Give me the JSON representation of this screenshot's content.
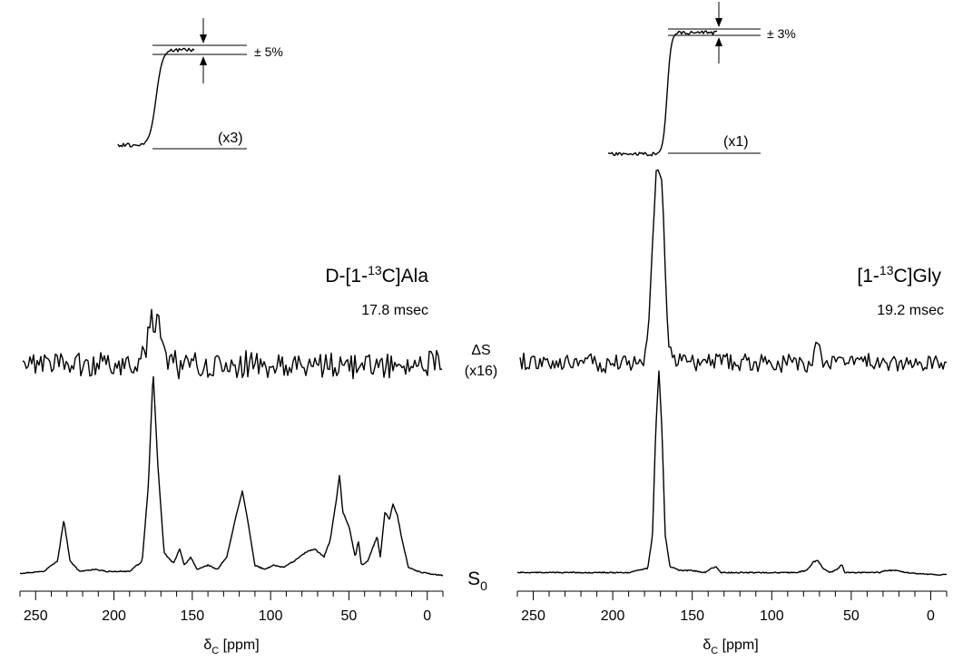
{
  "chart_data": [
    {
      "type": "line",
      "sample_label": {
        "pre": "D-[1-",
        "sup": "13",
        "post": "C]Ala"
      },
      "time_label": "17.8 msec",
      "xlabel": {
        "sym": "δ",
        "sub": "C",
        "unit": " [ppm]"
      },
      "xlim": [
        260,
        -10
      ],
      "x_reversed": true,
      "xticks": [
        "250",
        "200",
        "150",
        "100",
        "50",
        "0"
      ],
      "xtick_values": [
        250,
        200,
        150,
        100,
        50,
        0
      ],
      "integral_scale_label": "(x3)",
      "integral_tolerance_label": "± 5%",
      "series": [
        {
          "role": "S0",
          "points": [
            [
              260,
              0.02
            ],
            [
              245,
              0.03
            ],
            [
              236,
              0.08
            ],
            [
              232,
              0.28
            ],
            [
              228,
              0.08
            ],
            [
              222,
              0.03
            ],
            [
              212,
              0.04
            ],
            [
              205,
              0.03
            ],
            [
              190,
              0.03
            ],
            [
              182,
              0.08
            ],
            [
              178,
              0.45
            ],
            [
              175,
              1.0
            ],
            [
              172,
              0.55
            ],
            [
              168,
              0.12
            ],
            [
              162,
              0.07
            ],
            [
              158,
              0.14
            ],
            [
              155,
              0.06
            ],
            [
              151,
              0.1
            ],
            [
              147,
              0.04
            ],
            [
              140,
              0.06
            ],
            [
              134,
              0.04
            ],
            [
              128,
              0.1
            ],
            [
              122,
              0.3
            ],
            [
              118,
              0.42
            ],
            [
              114,
              0.25
            ],
            [
              110,
              0.06
            ],
            [
              104,
              0.04
            ],
            [
              98,
              0.06
            ],
            [
              92,
              0.05
            ],
            [
              85,
              0.08
            ],
            [
              78,
              0.12
            ],
            [
              72,
              0.14
            ],
            [
              66,
              0.1
            ],
            [
              62,
              0.18
            ],
            [
              58,
              0.38
            ],
            [
              56,
              0.5
            ],
            [
              54,
              0.32
            ],
            [
              50,
              0.25
            ],
            [
              46,
              0.1
            ],
            [
              44,
              0.18
            ],
            [
              42,
              0.06
            ],
            [
              38,
              0.08
            ],
            [
              34,
              0.16
            ],
            [
              32,
              0.2
            ],
            [
              30,
              0.1
            ],
            [
              27,
              0.32
            ],
            [
              24,
              0.28
            ],
            [
              22,
              0.36
            ],
            [
              19,
              0.3
            ],
            [
              16,
              0.18
            ],
            [
              12,
              0.05
            ],
            [
              6,
              0.03
            ],
            [
              0,
              0.02
            ],
            [
              -10,
              0.01
            ]
          ]
        },
        {
          "role": "dS",
          "points": [
            [
              260,
              0.0
            ],
            [
              183,
              0.0
            ],
            [
              180,
              0.15
            ],
            [
              178,
              0.55
            ],
            [
              176,
              0.8
            ],
            [
              174,
              0.7
            ],
            [
              172,
              0.85
            ],
            [
              170,
              0.45
            ],
            [
              168,
              0.15
            ],
            [
              165,
              0.0
            ],
            [
              -10,
              0.0
            ]
          ]
        }
      ]
    },
    {
      "type": "line",
      "sample_label": {
        "pre": "[1-",
        "sup": "13",
        "post": "C]Gly"
      },
      "time_label": "19.2 msec",
      "xlabel": {
        "sym": "δ",
        "sub": "C",
        "unit": " [ppm]"
      },
      "xlim": [
        260,
        -10
      ],
      "x_reversed": true,
      "xticks": [
        "250",
        "200",
        "150",
        "100",
        "50",
        "0"
      ],
      "xtick_values": [
        250,
        200,
        150,
        100,
        50,
        0
      ],
      "integral_scale_label": "(x1)",
      "integral_tolerance_label": "± 3%",
      "series": [
        {
          "role": "S0",
          "points": [
            [
              260,
              0.02
            ],
            [
              220,
              0.02
            ],
            [
              190,
              0.02
            ],
            [
              178,
              0.04
            ],
            [
              175,
              0.2
            ],
            [
              173,
              0.7
            ],
            [
              171,
              1.0
            ],
            [
              169,
              0.7
            ],
            [
              167,
              0.2
            ],
            [
              164,
              0.05
            ],
            [
              158,
              0.03
            ],
            [
              150,
              0.03
            ],
            [
              142,
              0.02
            ],
            [
              138,
              0.04
            ],
            [
              135,
              0.05
            ],
            [
              132,
              0.02
            ],
            [
              120,
              0.02
            ],
            [
              100,
              0.02
            ],
            [
              85,
              0.02
            ],
            [
              78,
              0.03
            ],
            [
              74,
              0.07
            ],
            [
              71,
              0.08
            ],
            [
              68,
              0.04
            ],
            [
              63,
              0.02
            ],
            [
              58,
              0.04
            ],
            [
              56,
              0.06
            ],
            [
              54,
              0.02
            ],
            [
              40,
              0.02
            ],
            [
              32,
              0.02
            ],
            [
              28,
              0.03
            ],
            [
              22,
              0.03
            ],
            [
              16,
              0.02
            ],
            [
              0,
              0.01
            ],
            [
              -10,
              0.01
            ]
          ]
        },
        {
          "role": "dS",
          "points": [
            [
              260,
              0.0
            ],
            [
              180,
              0.0
            ],
            [
              177,
              0.2
            ],
            [
              175,
              0.6
            ],
            [
              173,
              0.92
            ],
            [
              171,
              1.0
            ],
            [
              169,
              0.85
            ],
            [
              167,
              0.45
            ],
            [
              165,
              0.1
            ],
            [
              162,
              0.0
            ],
            [
              75,
              0.0
            ],
            [
              72,
              0.1
            ],
            [
              68,
              0.0
            ],
            [
              -10,
              0.0
            ]
          ]
        }
      ]
    }
  ],
  "middle_labels": {
    "dS_name": "ΔS",
    "dS_scale": "(x16)",
    "s0_name": "S",
    "s0_sub": "0"
  }
}
